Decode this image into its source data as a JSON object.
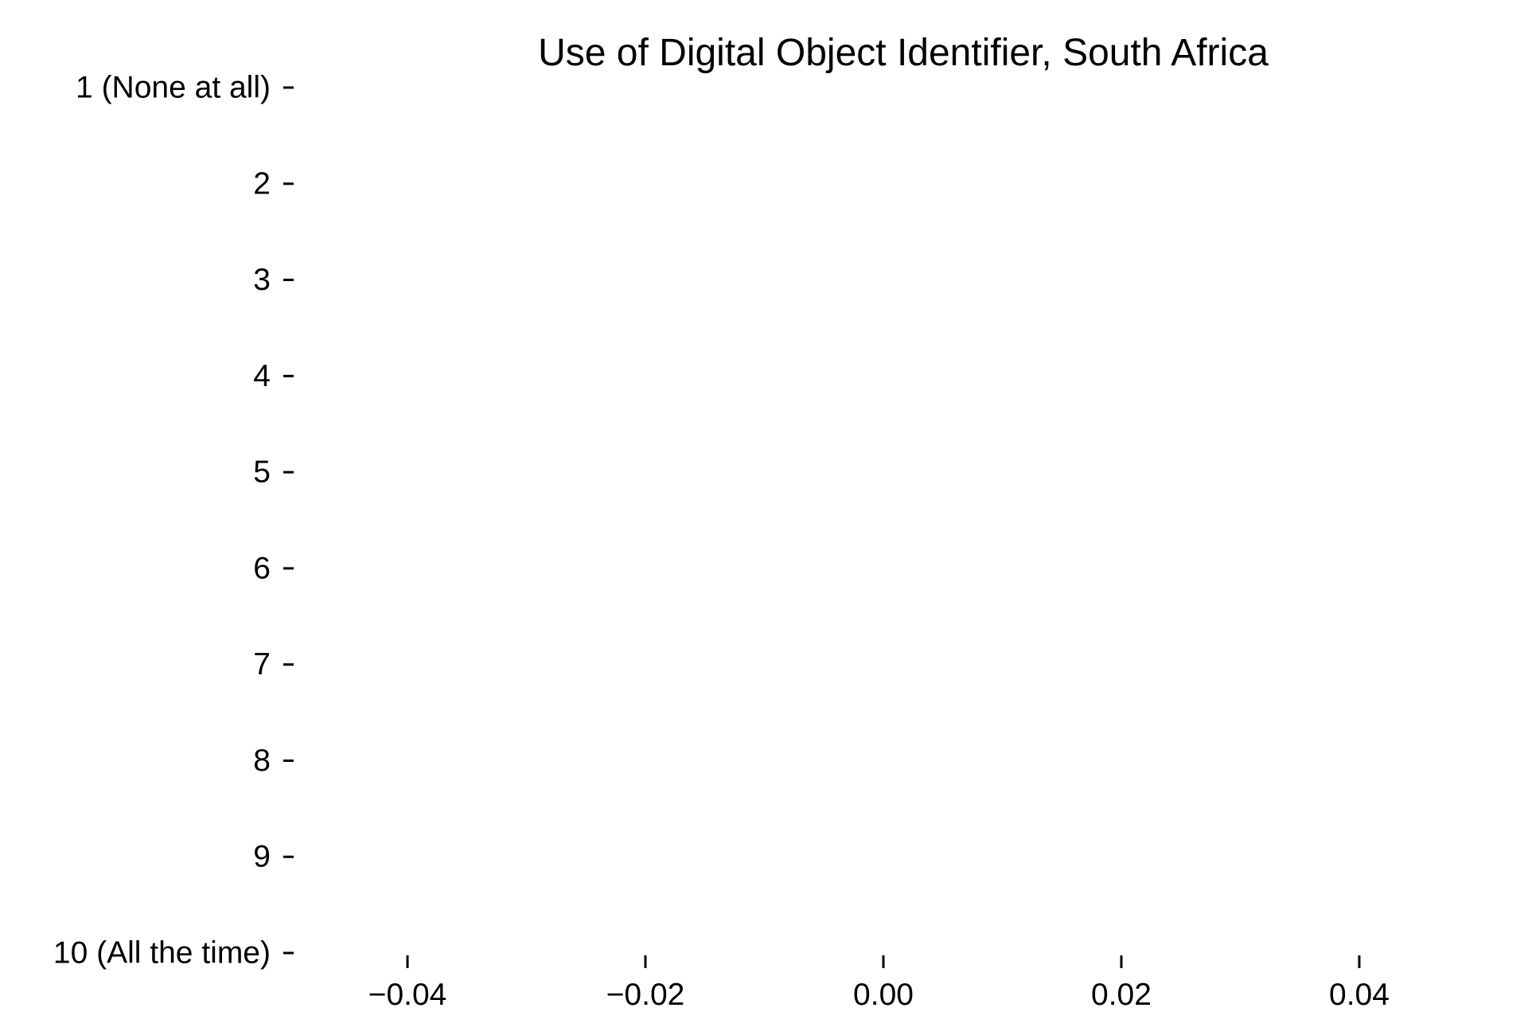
{
  "chart_data": {
    "type": "bar",
    "orientation": "horizontal",
    "title": "Use of Digital Object Identifier, South Africa",
    "xlabel": "",
    "ylabel": "",
    "categories": [
      "1 (None at all)",
      "2",
      "3",
      "4",
      "5",
      "6",
      "7",
      "8",
      "9",
      "10 (All the time)"
    ],
    "values": [
      null,
      null,
      null,
      null,
      null,
      null,
      null,
      null,
      null,
      null
    ],
    "x_ticks": [
      -0.04,
      -0.02,
      0.0,
      0.02,
      0.04
    ],
    "x_tick_labels": [
      "−0.04",
      "−0.02",
      "0.00",
      "0.02",
      "0.04"
    ],
    "xlim": [
      -0.0495,
      0.0495
    ],
    "grid": false,
    "legend": "none"
  }
}
